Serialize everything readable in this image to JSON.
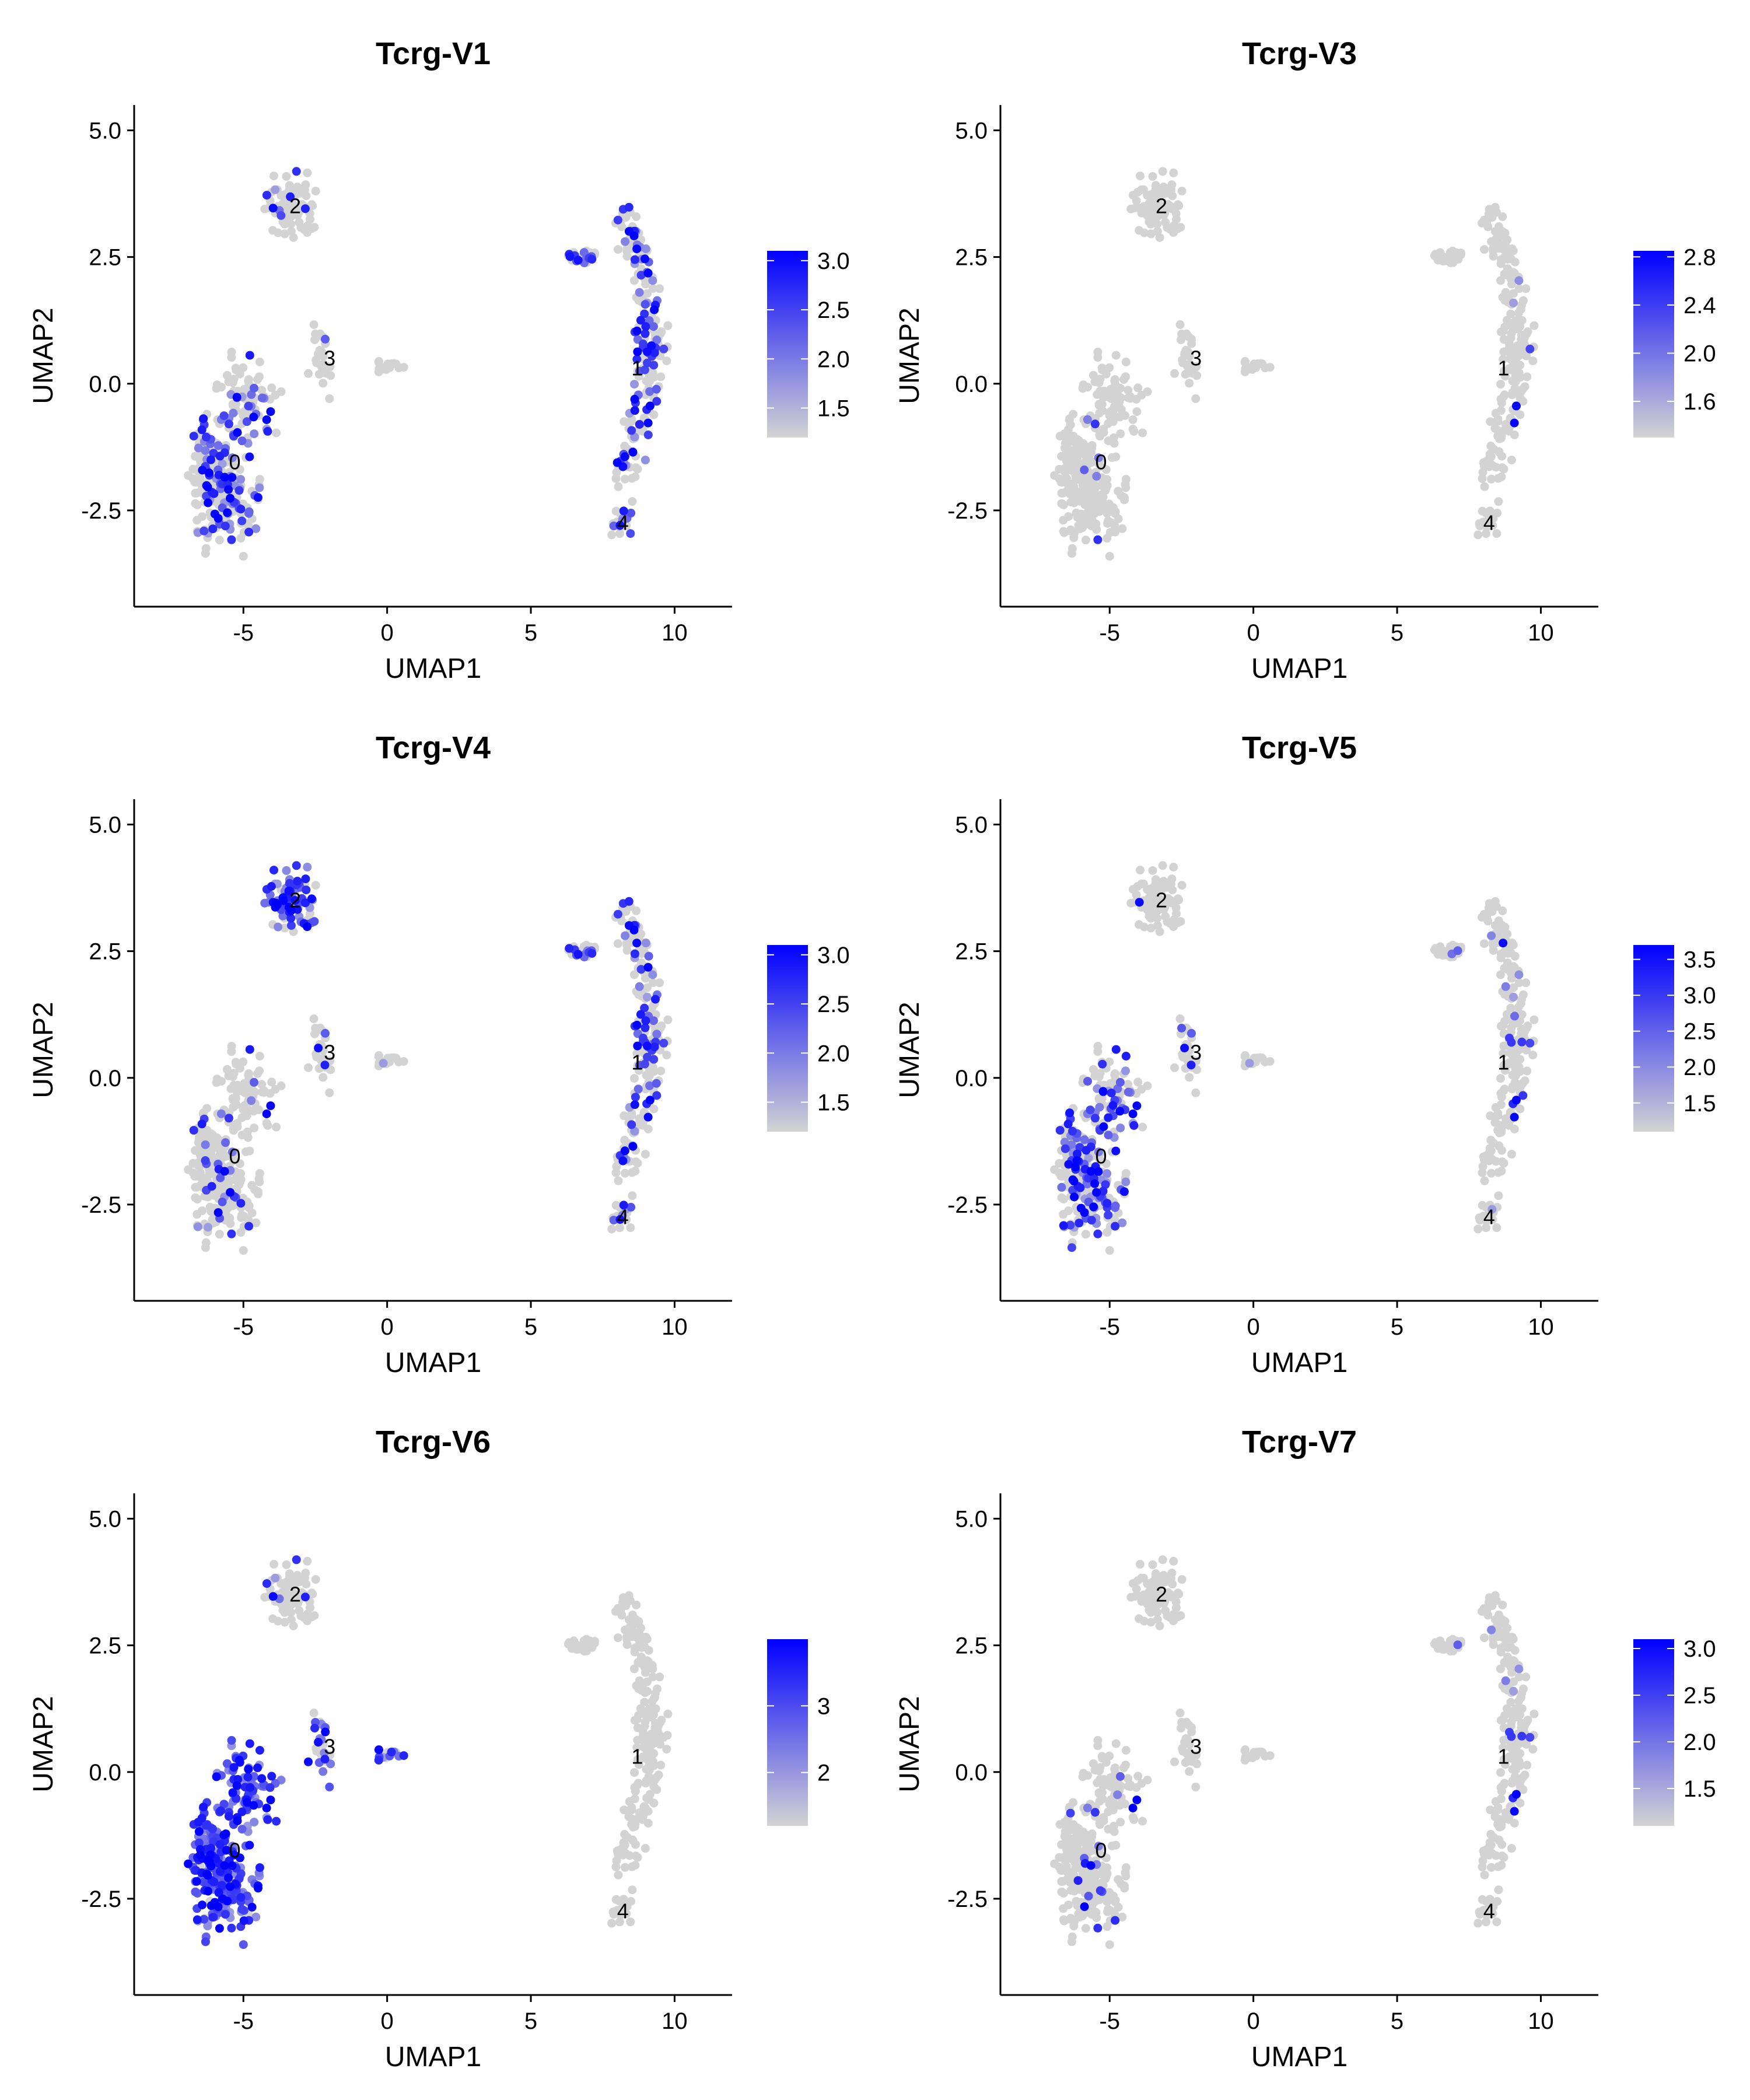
{
  "figure": {
    "colors": {
      "low": "#d3d3d3",
      "high": "#0000ff",
      "axis": "#000000"
    },
    "cluster_labels": [
      "0",
      "1",
      "2",
      "3",
      "4"
    ]
  },
  "chart_data": [
    {
      "type": "scatter",
      "title": "Tcrg-V1",
      "xlabel": "UMAP1",
      "ylabel": "UMAP2",
      "xlim": [
        -8.8,
        12
      ],
      "ylim": [
        -4.4,
        5.5
      ],
      "xticks": [
        -5,
        0,
        5,
        10
      ],
      "xtick_labels": [
        "-5",
        "0",
        "5",
        "10"
      ],
      "yticks": [
        -2.5,
        0.0,
        2.5,
        5.0
      ],
      "ytick_labels": [
        "-2.5",
        "0.0",
        "2.5",
        "5.0"
      ],
      "grid": false,
      "legend": {
        "position": "right",
        "range": [
          1.2,
          3.1
        ],
        "ticks": [
          1.5,
          2.0,
          2.5,
          3.0
        ],
        "labels": [
          "1.5",
          "2.0",
          "2.5",
          "3.0"
        ]
      },
      "expression": {
        "clusters": {
          "0": 0.3,
          "1": 0.45,
          "2": 0.1,
          "3": 0.08,
          "4": 0.4
        },
        "max": 3.1
      },
      "cluster_label_positions": [
        {
          "label": "0",
          "x": -5.3,
          "y": -1.55
        },
        {
          "label": "1",
          "x": 8.7,
          "y": 0.3
        },
        {
          "label": "2",
          "x": -3.2,
          "y": 3.5
        },
        {
          "label": "3",
          "x": -2.0,
          "y": 0.5
        },
        {
          "label": "4",
          "x": 8.2,
          "y": -2.75
        }
      ]
    },
    {
      "type": "scatter",
      "title": "Tcrg-V3",
      "xlabel": "UMAP1",
      "ylabel": "UMAP2",
      "xlim": [
        -8.8,
        12
      ],
      "ylim": [
        -4.4,
        5.5
      ],
      "xticks": [
        -5,
        0,
        5,
        10
      ],
      "xtick_labels": [
        "-5",
        "0",
        "5",
        "10"
      ],
      "yticks": [
        -2.5,
        0.0,
        2.5,
        5.0
      ],
      "ytick_labels": [
        "-2.5",
        "0.0",
        "2.5",
        "5.0"
      ],
      "grid": false,
      "legend": {
        "position": "right",
        "range": [
          1.3,
          2.85
        ],
        "ticks": [
          1.6,
          2.0,
          2.4,
          2.8
        ],
        "labels": [
          "1.6",
          "2.0",
          "2.4",
          "2.8"
        ]
      },
      "expression": {
        "clusters": {
          "0": 0.02,
          "1": 0.02,
          "2": 0.02,
          "3": 0.0,
          "4": 0.0
        },
        "max": 2.85
      },
      "cluster_label_positions": [
        {
          "label": "0",
          "x": -5.3,
          "y": -1.55
        },
        {
          "label": "1",
          "x": 8.7,
          "y": 0.3
        },
        {
          "label": "2",
          "x": -3.2,
          "y": 3.5
        },
        {
          "label": "3",
          "x": -2.0,
          "y": 0.5
        },
        {
          "label": "4",
          "x": 8.2,
          "y": -2.75
        }
      ]
    },
    {
      "type": "scatter",
      "title": "Tcrg-V4",
      "xlabel": "UMAP1",
      "ylabel": "UMAP2",
      "xlim": [
        -8.8,
        12
      ],
      "ylim": [
        -4.4,
        5.5
      ],
      "xticks": [
        -5,
        0,
        5,
        10
      ],
      "xtick_labels": [
        "-5",
        "0",
        "5",
        "10"
      ],
      "yticks": [
        -2.5,
        0.0,
        2.5,
        5.0
      ],
      "ytick_labels": [
        "-2.5",
        "0.0",
        "2.5",
        "5.0"
      ],
      "grid": false,
      "legend": {
        "position": "right",
        "range": [
          1.2,
          3.1
        ],
        "ticks": [
          1.5,
          2.0,
          2.5,
          3.0
        ],
        "labels": [
          "1.5",
          "2.0",
          "2.5",
          "3.0"
        ]
      },
      "expression": {
        "clusters": {
          "0": 0.08,
          "1": 0.35,
          "2": 0.7,
          "3": 0.15,
          "4": 0.3
        },
        "max": 3.1
      },
      "cluster_label_positions": [
        {
          "label": "0",
          "x": -5.3,
          "y": -1.55
        },
        {
          "label": "1",
          "x": 8.7,
          "y": 0.3
        },
        {
          "label": "2",
          "x": -3.2,
          "y": 3.5
        },
        {
          "label": "3",
          "x": -2.0,
          "y": 0.5
        },
        {
          "label": "4",
          "x": 8.2,
          "y": -2.75
        }
      ]
    },
    {
      "type": "scatter",
      "title": "Tcrg-V5",
      "xlabel": "UMAP1",
      "ylabel": "UMAP2",
      "xlim": [
        -8.8,
        12
      ],
      "ylim": [
        -4.4,
        5.5
      ],
      "xticks": [
        -5,
        0,
        5,
        10
      ],
      "xtick_labels": [
        "-5",
        "0",
        "5",
        "10"
      ],
      "yticks": [
        -2.5,
        0.0,
        2.5,
        5.0
      ],
      "ytick_labels": [
        "-2.5",
        "0.0",
        "2.5",
        "5.0"
      ],
      "grid": false,
      "legend": {
        "position": "right",
        "range": [
          1.1,
          3.7
        ],
        "ticks": [
          1.5,
          2.0,
          2.5,
          3.0,
          3.5
        ],
        "labels": [
          "1.5",
          "2.0",
          "2.5",
          "3.0",
          "3.5"
        ]
      },
      "expression": {
        "clusters": {
          "0": 0.35,
          "1": 0.05,
          "2": 0.03,
          "3": 0.2,
          "4": 0.03
        },
        "max": 3.7
      },
      "cluster_label_positions": [
        {
          "label": "0",
          "x": -5.3,
          "y": -1.55
        },
        {
          "label": "1",
          "x": 8.7,
          "y": 0.3
        },
        {
          "label": "2",
          "x": -3.2,
          "y": 3.5
        },
        {
          "label": "3",
          "x": -2.0,
          "y": 0.5
        },
        {
          "label": "4",
          "x": 8.2,
          "y": -2.75
        }
      ]
    },
    {
      "type": "scatter",
      "title": "Tcrg-V6",
      "xlabel": "UMAP1",
      "ylabel": "UMAP2",
      "xlim": [
        -8.8,
        12
      ],
      "ylim": [
        -4.4,
        5.5
      ],
      "xticks": [
        -5,
        0,
        5,
        10
      ],
      "xtick_labels": [
        "-5",
        "0",
        "5",
        "10"
      ],
      "yticks": [
        -2.5,
        0.0,
        2.5,
        5.0
      ],
      "ytick_labels": [
        "-2.5",
        "0.0",
        "2.5",
        "5.0"
      ],
      "grid": false,
      "legend": {
        "position": "right",
        "range": [
          1.2,
          4.0
        ],
        "ticks": [
          2,
          3
        ],
        "labels": [
          "2",
          "3"
        ]
      },
      "expression": {
        "clusters": {
          "0": 0.95,
          "1": 0.0,
          "2": 0.08,
          "3": 0.6,
          "4": 0.0
        },
        "max": 4.0
      },
      "cluster_label_positions": [
        {
          "label": "0",
          "x": -5.3,
          "y": -1.55
        },
        {
          "label": "1",
          "x": 8.7,
          "y": 0.3
        },
        {
          "label": "2",
          "x": -3.2,
          "y": 3.5
        },
        {
          "label": "3",
          "x": -2.0,
          "y": 0.5
        },
        {
          "label": "4",
          "x": 8.2,
          "y": -2.75
        }
      ]
    },
    {
      "type": "scatter",
      "title": "Tcrg-V7",
      "xlabel": "UMAP1",
      "ylabel": "UMAP2",
      "xlim": [
        -8.8,
        12
      ],
      "ylim": [
        -4.4,
        5.5
      ],
      "xticks": [
        -5,
        0,
        5,
        10
      ],
      "xtick_labels": [
        "-5",
        "0",
        "5",
        "10"
      ],
      "yticks": [
        -2.5,
        0.0,
        2.5,
        5.0
      ],
      "ytick_labels": [
        "-2.5",
        "0.0",
        "2.5",
        "5.0"
      ],
      "grid": false,
      "legend": {
        "position": "right",
        "range": [
          1.1,
          3.1
        ],
        "ticks": [
          1.5,
          2.0,
          2.5,
          3.0
        ],
        "labels": [
          "1.5",
          "2.0",
          "2.5",
          "3.0"
        ]
      },
      "expression": {
        "clusters": {
          "0": 0.03,
          "1": 0.04,
          "2": 0.0,
          "3": 0.02,
          "4": 0.02
        },
        "max": 3.1
      },
      "cluster_label_positions": [
        {
          "label": "0",
          "x": -5.3,
          "y": -1.55
        },
        {
          "label": "1",
          "x": 8.7,
          "y": 0.3
        },
        {
          "label": "2",
          "x": -3.2,
          "y": 3.5
        },
        {
          "label": "3",
          "x": -2.0,
          "y": 0.5
        },
        {
          "label": "4",
          "x": 8.2,
          "y": -2.75
        }
      ]
    }
  ]
}
